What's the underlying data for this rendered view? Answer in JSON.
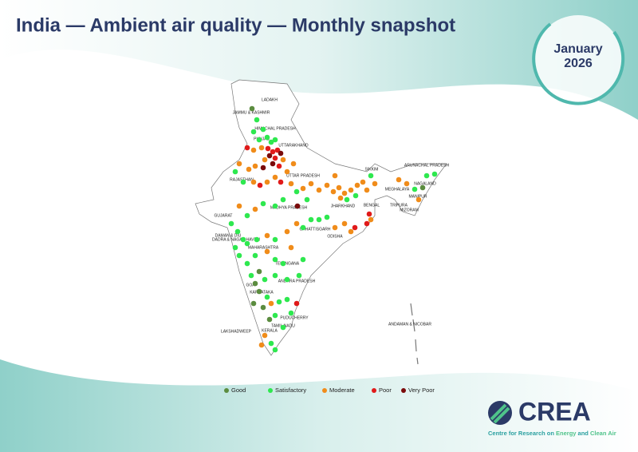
{
  "header": {
    "title": "India — Ambient air quality — Monthly snapshot"
  },
  "badge": {
    "month": "January",
    "year": "2026"
  },
  "map": {
    "states": [
      "LADAKH",
      "JAMMU & KASHMIR",
      "HIMACHAL PRADESH",
      "PUNJAB",
      "UTTARAKHAND",
      "RAJASTHAN",
      "UTTAR PRADESH",
      "SIKKIM",
      "ARUNACHAL PRADESH",
      "NAGALAND",
      "MEGHALAYA",
      "MANIPUR",
      "TRIPURA",
      "MIZORAM",
      "JHARKHAND",
      "BENGAL",
      "GUJARAT",
      "MADHYA PRADESH",
      "CHHATTISGARH",
      "ODISHA",
      "DAMAN & DIU",
      "DADRA & NAGAR HAVELI",
      "MAHARASHTRA",
      "TELANGANA",
      "ANDHRA PRADESH",
      "GOA",
      "KARNATAKA",
      "PUDUCHERRY",
      "TAMIL NADU",
      "KERALA",
      "LAKSHADWEEP",
      "ANDAMAN & NICOBAR"
    ]
  },
  "legend": [
    {
      "label": "Good",
      "color": "#5b8c3f"
    },
    {
      "label": "Satisfactory",
      "color": "#2ee84f"
    },
    {
      "label": "Moderate",
      "color": "#f08c1a"
    },
    {
      "label": "Poor",
      "color": "#e01a1a"
    },
    {
      "label": "Very Poor",
      "color": "#7a0a0a"
    }
  ],
  "logo": {
    "name": "CREA",
    "tagline": [
      "Centre for Research on ",
      "Energy",
      " and ",
      "Clean Air"
    ]
  }
}
